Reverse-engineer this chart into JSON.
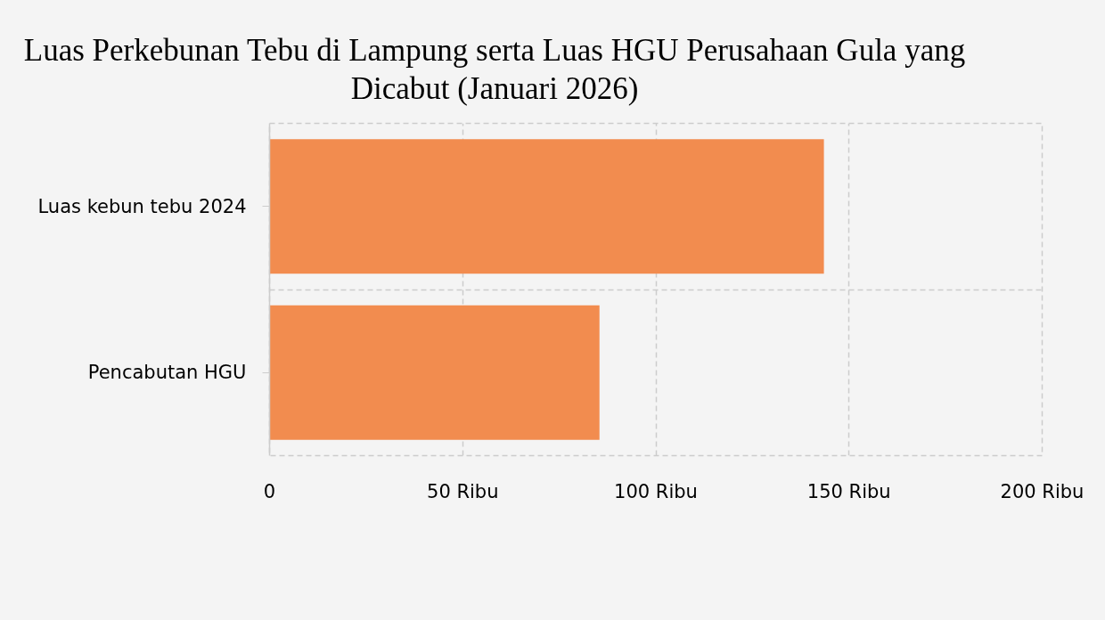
{
  "chart_data": {
    "type": "bar",
    "orientation": "horizontal",
    "title": "Luas Perkebunan Tebu di Lampung serta Luas HGU Perusahaan Gula yang Dicabut (Januari 2026)",
    "categories": [
      "Luas kebun tebu 2024",
      "Pencabutan HGU"
    ],
    "values": [
      143.5,
      85.4
    ],
    "color": "#f28c4f",
    "xlim": [
      0,
      200
    ],
    "xticks": [
      0,
      {
        "value": 50,
        "label": "50 Ribu"
      },
      {
        "value": 100,
        "label": "100 Ribu"
      },
      {
        "value": 150,
        "label": "150 Ribu"
      },
      {
        "value": 200,
        "label": "200 Ribu"
      }
    ],
    "grid": true
  }
}
